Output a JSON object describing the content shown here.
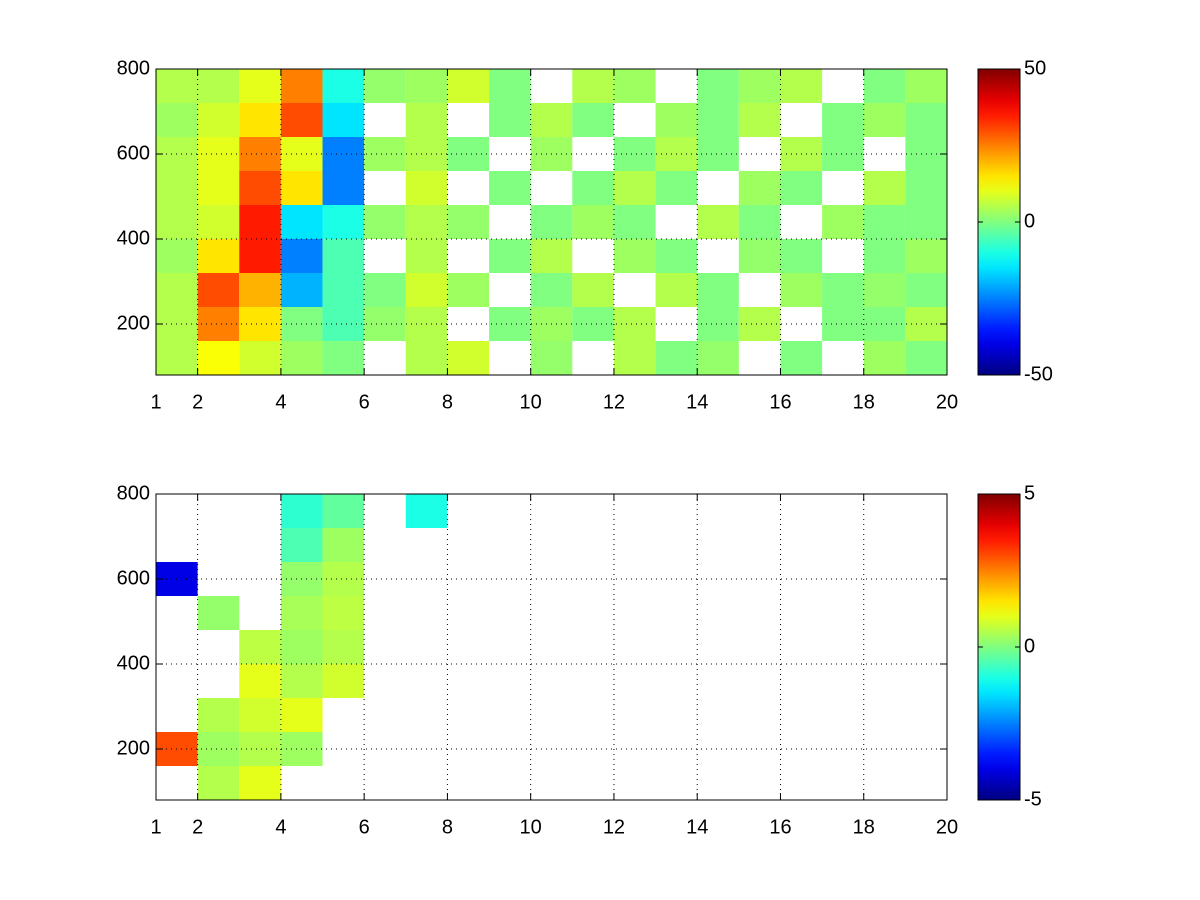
{
  "chart_data": [
    {
      "type": "heatmap",
      "colormap": "jet",
      "grid": true,
      "x": [
        1.5,
        2.5,
        3.5,
        4.5,
        5.5,
        6.5,
        7.5,
        8.5,
        9.5,
        10.5,
        11.5,
        12.5,
        13.5,
        14.5,
        15.5,
        16.5,
        17.5,
        18.5,
        19.5
      ],
      "y": [
        120,
        200,
        280,
        360,
        440,
        520,
        600,
        680,
        760
      ],
      "z": [
        [
          5,
          12,
          8,
          3,
          0,
          null,
          5,
          8,
          null,
          2,
          null,
          5,
          0,
          2,
          null,
          0,
          null,
          3,
          0
        ],
        [
          5,
          25,
          15,
          0,
          -5,
          2,
          5,
          null,
          0,
          3,
          0,
          5,
          null,
          0,
          5,
          null,
          0,
          0,
          5
        ],
        [
          5,
          30,
          20,
          -20,
          -5,
          0,
          8,
          3,
          null,
          0,
          5,
          null,
          5,
          0,
          null,
          3,
          0,
          2,
          0
        ],
        [
          3,
          15,
          35,
          -25,
          -5,
          null,
          5,
          null,
          0,
          5,
          null,
          3,
          0,
          null,
          2,
          0,
          null,
          0,
          3
        ],
        [
          5,
          8,
          35,
          -15,
          -10,
          2,
          5,
          2,
          null,
          0,
          3,
          0,
          null,
          5,
          0,
          null,
          3,
          0,
          0
        ],
        [
          5,
          10,
          30,
          15,
          -25,
          null,
          8,
          null,
          0,
          null,
          0,
          5,
          0,
          null,
          3,
          0,
          null,
          5,
          0
        ],
        [
          5,
          10,
          25,
          10,
          -25,
          3,
          5,
          0,
          null,
          3,
          null,
          0,
          5,
          0,
          null,
          5,
          0,
          null,
          0
        ],
        [
          3,
          8,
          15,
          30,
          -15,
          null,
          5,
          null,
          0,
          5,
          0,
          null,
          3,
          0,
          5,
          null,
          0,
          3,
          0
        ],
        [
          5,
          5,
          10,
          25,
          -10,
          2,
          3,
          8,
          0,
          null,
          5,
          3,
          null,
          0,
          3,
          5,
          null,
          0,
          3
        ]
      ],
      "xlim": [
        1,
        20
      ],
      "xticks": [
        1,
        2,
        4,
        6,
        8,
        10,
        12,
        14,
        16,
        18,
        20
      ],
      "ylim": [
        80,
        800
      ],
      "yticks": [
        200,
        400,
        600,
        800
      ],
      "clim": [
        -50,
        50
      ],
      "cticks": [
        -50,
        0,
        50
      ]
    },
    {
      "type": "heatmap",
      "colormap": "jet",
      "grid": true,
      "x": [
        1.5,
        2.5,
        3.5,
        4.5,
        5.5,
        6.5,
        7.5,
        8.5,
        9.5,
        10.5,
        11.5,
        12.5,
        13.5,
        14.5,
        15.5,
        16.5,
        17.5,
        18.5,
        19.5
      ],
      "y": [
        120,
        200,
        280,
        360,
        440,
        520,
        600,
        680,
        760
      ],
      "z": [
        [
          null,
          0.5,
          1,
          null,
          null,
          null,
          null,
          null,
          null,
          null,
          null,
          null,
          null,
          null,
          null,
          null,
          null,
          null,
          null
        ],
        [
          3,
          0.3,
          0.5,
          0.3,
          null,
          null,
          null,
          null,
          null,
          null,
          null,
          null,
          null,
          null,
          null,
          null,
          null,
          null,
          null
        ],
        [
          null,
          0.5,
          0.8,
          1,
          null,
          null,
          null,
          null,
          null,
          null,
          null,
          null,
          null,
          null,
          null,
          null,
          null,
          null,
          null
        ],
        [
          null,
          null,
          1,
          0.5,
          0.8,
          null,
          null,
          null,
          null,
          null,
          null,
          null,
          null,
          null,
          null,
          null,
          null,
          null,
          null
        ],
        [
          null,
          null,
          0.6,
          0.3,
          0.5,
          null,
          null,
          null,
          null,
          null,
          null,
          null,
          null,
          null,
          null,
          null,
          null,
          null,
          null
        ],
        [
          null,
          0.2,
          null,
          0.4,
          0.6,
          null,
          null,
          null,
          null,
          null,
          null,
          null,
          null,
          null,
          null,
          null,
          null,
          null,
          null
        ],
        [
          -4,
          null,
          null,
          0.2,
          0.5,
          null,
          null,
          null,
          null,
          null,
          null,
          null,
          null,
          null,
          null,
          null,
          null,
          null,
          null
        ],
        [
          null,
          null,
          null,
          -0.5,
          0.3,
          null,
          null,
          null,
          null,
          null,
          null,
          null,
          null,
          null,
          null,
          null,
          null,
          null,
          null
        ],
        [
          null,
          null,
          null,
          -0.8,
          -0.3,
          null,
          -1,
          null,
          null,
          null,
          null,
          null,
          null,
          null,
          null,
          null,
          null,
          null,
          null
        ]
      ],
      "xlim": [
        1,
        20
      ],
      "xticks": [
        1,
        2,
        4,
        6,
        8,
        10,
        12,
        14,
        16,
        18,
        20
      ],
      "ylim": [
        80,
        800
      ],
      "yticks": [
        200,
        400,
        600,
        800
      ],
      "clim": [
        -5,
        5
      ],
      "cticks": [
        -5,
        0,
        5
      ]
    }
  ]
}
